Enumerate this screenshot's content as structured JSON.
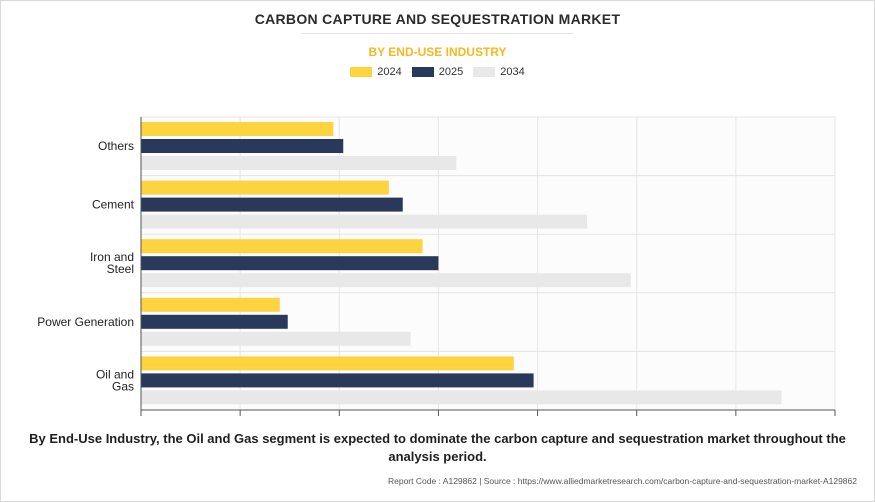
{
  "title": "CARBON CAPTURE AND SEQUESTRATION MARKET",
  "subtitle": "BY END-USE INDUSTRY",
  "colors": {
    "2024": "#fdd33f",
    "2025": "#28395c",
    "2034": "#e8e8e8",
    "subtitle": "#f5b921"
  },
  "chart_data": {
    "type": "bar",
    "orientation": "horizontal",
    "categories": [
      "Others",
      "Cement",
      "Iron and Steel",
      "Power Generation",
      "Oil and Gas"
    ],
    "category_lines": [
      [
        "Others"
      ],
      [
        "Cement"
      ],
      [
        "Iron and",
        "Steel"
      ],
      [
        "Power Generation"
      ],
      [
        "Oil and",
        "Gas"
      ]
    ],
    "series": [
      {
        "name": "2024",
        "values": [
          0.97,
          1.25,
          1.42,
          0.7,
          1.88
        ]
      },
      {
        "name": "2025",
        "values": [
          1.02,
          1.32,
          1.5,
          0.74,
          1.98
        ]
      },
      {
        "name": "2034",
        "values": [
          1.59,
          2.25,
          2.47,
          1.36,
          3.23
        ]
      }
    ],
    "xlim": [
      0,
      3.5
    ],
    "grid": true,
    "legend_position": "top-center"
  },
  "caption": "By End-Use Industry, the Oil and Gas segment is expected to dominate the carbon capture and sequestration market throughout the analysis period.",
  "footer": "Report Code : A129862  |  Source : https://www.alliedmarketresearch.com/carbon-capture-and-sequestration-market-A129862"
}
